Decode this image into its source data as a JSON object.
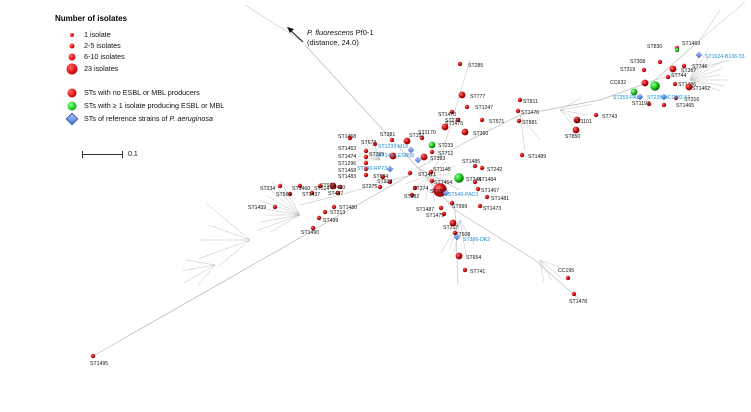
{
  "legend": {
    "title": "Number of isolates",
    "size_items": [
      {
        "label": "1 isolate"
      },
      {
        "label": "2-5 isolates"
      },
      {
        "label": "6-10 isolates"
      },
      {
        "label": "23 isolates"
      }
    ],
    "color_items": [
      {
        "label": "STs with no ESBL or MBL producers",
        "color": "#d11111"
      },
      {
        "label": "STs with ≥ 1 isolate producing ESBL or MBL",
        "color": "#1fcc1f"
      },
      {
        "label_prefix": "STs of reference strains of ",
        "label_species": "P. aeruginosa",
        "color": "#5b86dd"
      }
    ]
  },
  "scale": {
    "label": "0.1"
  },
  "outgroup": {
    "species": "P. fluorescens",
    "strain": " Pf0-1",
    "distance": "(distance, 24.0)"
  },
  "colors": {
    "branch": "#b8b8b8",
    "red": "#d11111",
    "green": "#1fcc1f",
    "blue_ref": "#5b86dd",
    "ref_label": "#1a8fd6"
  },
  "nodes": [
    {
      "label": "ST285",
      "kind": "red",
      "size": "s"
    },
    {
      "label": "ST777",
      "kind": "red",
      "size": "m"
    },
    {
      "label": "ST1247",
      "kind": "red",
      "size": "s"
    },
    {
      "label": "ST1470",
      "kind": "red",
      "size": "s"
    },
    {
      "label": "ST1475",
      "kind": "red",
      "size": "s"
    },
    {
      "label": "ST277",
      "kind": "red",
      "size": "m"
    },
    {
      "label": "ST360",
      "kind": "red",
      "size": "m"
    },
    {
      "label": "ST1170",
      "kind": "red",
      "size": "s"
    },
    {
      "label": "ST233",
      "kind": "green",
      "size": "m"
    },
    {
      "label": "ST712",
      "kind": "red",
      "size": "s"
    },
    {
      "label": "ST393",
      "kind": "red",
      "size": "m"
    },
    {
      "label": "ST381",
      "kind": "red",
      "size": "s"
    },
    {
      "label": "ST152",
      "kind": "red",
      "size": "m"
    },
    {
      "label": "ST1458",
      "kind": "red",
      "size": "s"
    },
    {
      "label": "ST672",
      "kind": "red",
      "size": "s"
    },
    {
      "label": "ST1463",
      "kind": "red",
      "size": "s"
    },
    {
      "label": "ST1474",
      "kind": "red",
      "size": "s"
    },
    {
      "label": "ST1296",
      "kind": "red",
      "size": "s"
    },
    {
      "label": "ST1468",
      "kind": "red",
      "size": "s"
    },
    {
      "label": "ST1483",
      "kind": "red",
      "size": "s"
    },
    {
      "label": "ST395",
      "kind": "red",
      "size": "m"
    },
    {
      "label": "ST1471",
      "kind": "red",
      "size": "s"
    },
    {
      "label": "ST874",
      "kind": "red",
      "size": "s"
    },
    {
      "label": "ST918",
      "kind": "red",
      "size": "s"
    },
    {
      "label": "ST275",
      "kind": "red",
      "size": "s"
    },
    {
      "label": "ST970",
      "kind": "red",
      "size": "m"
    },
    {
      "label": "ST234",
      "kind": "red",
      "size": "s"
    },
    {
      "label": "ST1460",
      "kind": "red",
      "size": "s"
    },
    {
      "label": "ST514",
      "kind": "red",
      "size": "s"
    },
    {
      "label": "ST430",
      "kind": "red",
      "size": "s"
    },
    {
      "label": "ST569",
      "kind": "red",
      "size": "s"
    },
    {
      "label": "ST1437",
      "kind": "red",
      "size": "s"
    },
    {
      "label": "ST447",
      "kind": "red",
      "size": "s"
    },
    {
      "label": "ST1459",
      "kind": "red",
      "size": "s"
    },
    {
      "label": "ST1480",
      "kind": "red",
      "size": "s"
    },
    {
      "label": "ST213",
      "kind": "red",
      "size": "s"
    },
    {
      "label": "ST499",
      "kind": "red",
      "size": "s"
    },
    {
      "label": "ST1490",
      "kind": "red",
      "size": "s"
    },
    {
      "label": "ST274",
      "kind": "red",
      "size": "s"
    },
    {
      "label": "ST282",
      "kind": "red",
      "size": "s"
    },
    {
      "label": "ST1145",
      "kind": "red",
      "size": "s"
    },
    {
      "label": "ST1464",
      "kind": "red",
      "size": "s"
    },
    {
      "label": "ST155",
      "kind": "red",
      "size": "xl"
    },
    {
      "label": "ST999",
      "kind": "red",
      "size": "s"
    },
    {
      "label": "ST1487",
      "kind": "red",
      "size": "s"
    },
    {
      "label": "ST1479",
      "kind": "red",
      "size": "s"
    },
    {
      "label": "ST217",
      "kind": "red",
      "size": "m"
    },
    {
      "label": "ST508",
      "kind": "red",
      "size": "s"
    },
    {
      "label": "ST654",
      "kind": "red",
      "size": "m"
    },
    {
      "label": "ST741",
      "kind": "red",
      "size": "s"
    },
    {
      "label": "ST1495",
      "kind": "red",
      "size": "s"
    },
    {
      "label": "ST244",
      "kind": "green",
      "size": "l"
    },
    {
      "label": "ST1484",
      "kind": "red",
      "size": "s"
    },
    {
      "label": "ST1467",
      "kind": "red",
      "size": "s"
    },
    {
      "label": "ST1481",
      "kind": "red",
      "size": "s"
    },
    {
      "label": "ST1473",
      "kind": "red",
      "size": "s"
    },
    {
      "label": "ST242",
      "kind": "red",
      "size": "s"
    },
    {
      "label": "ST1485",
      "kind": "red",
      "size": "s"
    },
    {
      "label": "ST571",
      "kind": "red",
      "size": "s"
    },
    {
      "label": "ST811",
      "kind": "red",
      "size": "s"
    },
    {
      "label": "ST1476",
      "kind": "red",
      "size": "s"
    },
    {
      "label": "ST881",
      "kind": "red",
      "size": "s"
    },
    {
      "label": "ST1489",
      "kind": "red",
      "size": "s"
    },
    {
      "label": "ST1101",
      "kind": "red",
      "size": "m"
    },
    {
      "label": "ST850",
      "kind": "red",
      "size": "m"
    },
    {
      "label": "ST743",
      "kind": "red",
      "size": "s"
    },
    {
      "label": "ST830",
      "kind": "red",
      "size": "s"
    },
    {
      "label": "ST1469",
      "kind": "green",
      "size": "s"
    },
    {
      "label": "ST308",
      "kind": "red",
      "size": "s"
    },
    {
      "label": "ST746",
      "kind": "red",
      "size": "s"
    },
    {
      "label": "ST319",
      "kind": "red",
      "size": "s"
    },
    {
      "label": "ST357",
      "kind": "red",
      "size": "m"
    },
    {
      "label": "ST744",
      "kind": "red",
      "size": "s"
    },
    {
      "label": "CC632",
      "kind": "red",
      "size": "m"
    },
    {
      "label": "ST1486",
      "kind": "red",
      "size": "s"
    },
    {
      "label": "ST1462",
      "kind": "red",
      "size": "m"
    },
    {
      "label": "ST316",
      "kind": "red",
      "size": "s"
    },
    {
      "label": "ST1197",
      "kind": "red",
      "size": "s"
    },
    {
      "label": "ST1465",
      "kind": "red",
      "size": "s"
    },
    {
      "label": "CC195",
      "kind": "red",
      "size": "s"
    },
    {
      "label": "ST1478",
      "kind": "red",
      "size": "s"
    }
  ],
  "reference_strains": [
    {
      "label": "ST146-LESB58"
    },
    {
      "label": "ST1239-M18"
    },
    {
      "label": "ST190-RP73"
    },
    {
      "label": "ST549-PAO1"
    },
    {
      "label": "ST386-DK2"
    },
    {
      "label": "ST253-PA14"
    },
    {
      "label": "ST235-NCGM2.S1"
    },
    {
      "label": "ST1024-B136-33"
    }
  ]
}
